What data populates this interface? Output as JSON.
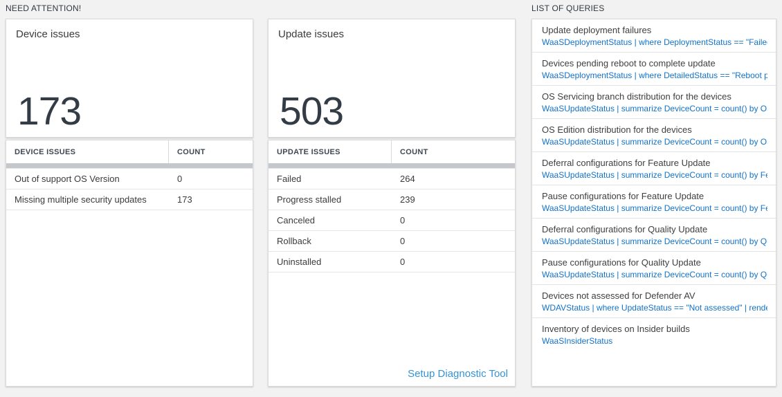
{
  "need_attention": {
    "heading": "NEED ATTENTION!"
  },
  "list_of_queries": {
    "heading": "LIST OF QUERIES"
  },
  "device_card": {
    "title": "Device issues",
    "count": "173"
  },
  "device_table": {
    "headers": [
      "DEVICE ISSUES",
      "COUNT"
    ],
    "rows": [
      {
        "label": "Out of support OS Version",
        "count": "0"
      },
      {
        "label": "Missing multiple security updates",
        "count": "173"
      }
    ]
  },
  "update_card": {
    "title": "Update issues",
    "count": "503"
  },
  "update_table": {
    "headers": [
      "UPDATE ISSUES",
      "COUNT"
    ],
    "rows": [
      {
        "label": "Failed",
        "count": "264"
      },
      {
        "label": "Progress stalled",
        "count": "239"
      },
      {
        "label": "Canceled",
        "count": "0"
      },
      {
        "label": "Rollback",
        "count": "0"
      },
      {
        "label": "Uninstalled",
        "count": "0"
      }
    ],
    "link_label": "Setup Diagnostic Tool"
  },
  "queries": [
    {
      "title": "Update deployment failures",
      "query": "WaaSDeploymentStatus | where DeploymentStatus == \"Failed\" |..."
    },
    {
      "title": "Devices pending reboot to complete update",
      "query": "WaaSDeploymentStatus | where DetailedStatus == \"Reboot pend..."
    },
    {
      "title": "OS Servicing branch distribution for the devices",
      "query": "WaaSUpdateStatus | summarize DeviceCount = count() by OSSer..."
    },
    {
      "title": "OS Edition distribution for the devices",
      "query": "WaaSUpdateStatus | summarize DeviceCount = count() by OSEdit..."
    },
    {
      "title": "Deferral configurations for Feature Update",
      "query": "WaaSUpdateStatus | summarize DeviceCount = count() by Featur..."
    },
    {
      "title": "Pause configurations for Feature Update",
      "query": "WaaSUpdateStatus | summarize DeviceCount = count() by Featur..."
    },
    {
      "title": "Deferral configurations for Quality Update",
      "query": "WaaSUpdateStatus | summarize DeviceCount = count() by Qualit..."
    },
    {
      "title": "Pause configurations for Quality Update",
      "query": "WaaSUpdateStatus | summarize DeviceCount = count() by Qualit..."
    },
    {
      "title": "Devices not assessed for Defender AV",
      "query": "WDAVStatus | where UpdateStatus == \"Not assessed\" | render ta..."
    },
    {
      "title": "Inventory of devices on Insider builds",
      "query": "WaaSInsiderStatus"
    }
  ],
  "colors": {
    "page_background": "#f2f2f2",
    "big_number": "#333b45",
    "query_blue": "#1272c8",
    "link_blue": "#3393d6",
    "scrollbar_gray": "#c4c7cb"
  }
}
